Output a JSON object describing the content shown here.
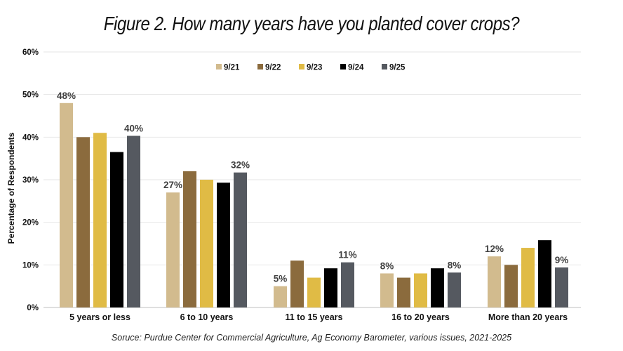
{
  "chart_data": {
    "type": "bar",
    "title": "Figure 2.  How many years have you planted cover crops?",
    "ylabel": "Percentage of Respondents",
    "xlabel": "",
    "ylim": [
      0,
      60
    ],
    "yticks": [
      "0%",
      "10%",
      "20%",
      "30%",
      "40%",
      "50%",
      "60%"
    ],
    "ytick_values": [
      0,
      10,
      20,
      30,
      40,
      50,
      60
    ],
    "grid": true,
    "legend_position": "top-center",
    "categories": [
      "5 years or less",
      "6 to 10 years",
      "11 to 15 years",
      "16 to 20 years",
      "More than 20 years"
    ],
    "series": [
      {
        "name": "9/21",
        "color": "#d2bb8e",
        "values": [
          48,
          27,
          5,
          8,
          12
        ]
      },
      {
        "name": "9/22",
        "color": "#8b6b3d",
        "values": [
          40,
          32,
          11,
          7,
          10
        ]
      },
      {
        "name": "9/23",
        "color": "#e0bb45",
        "values": [
          41,
          30,
          7,
          8,
          14
        ]
      },
      {
        "name": "9/24",
        "color": "#000000",
        "values": [
          36.5,
          29.3,
          9.2,
          9.2,
          15.8
        ]
      },
      {
        "name": "9/25",
        "color": "#555960",
        "values": [
          40.3,
          31.7,
          10.6,
          8.2,
          9.4
        ]
      }
    ],
    "data_labels": [
      {
        "series": 0,
        "category": 0,
        "text": "48%"
      },
      {
        "series": 4,
        "category": 0,
        "text": "40%"
      },
      {
        "series": 0,
        "category": 1,
        "text": "27%"
      },
      {
        "series": 4,
        "category": 1,
        "text": "32%"
      },
      {
        "series": 0,
        "category": 2,
        "text": "5%"
      },
      {
        "series": 4,
        "category": 2,
        "text": "11%"
      },
      {
        "series": 0,
        "category": 3,
        "text": "8%"
      },
      {
        "series": 4,
        "category": 3,
        "text": "8%"
      },
      {
        "series": 0,
        "category": 4,
        "text": "12%"
      },
      {
        "series": 4,
        "category": 4,
        "text": "9%"
      }
    ],
    "source": "Soruce: Purdue Center for Commercial Agriculture, Ag Economy Barometer, various issues, 2021-2025"
  }
}
